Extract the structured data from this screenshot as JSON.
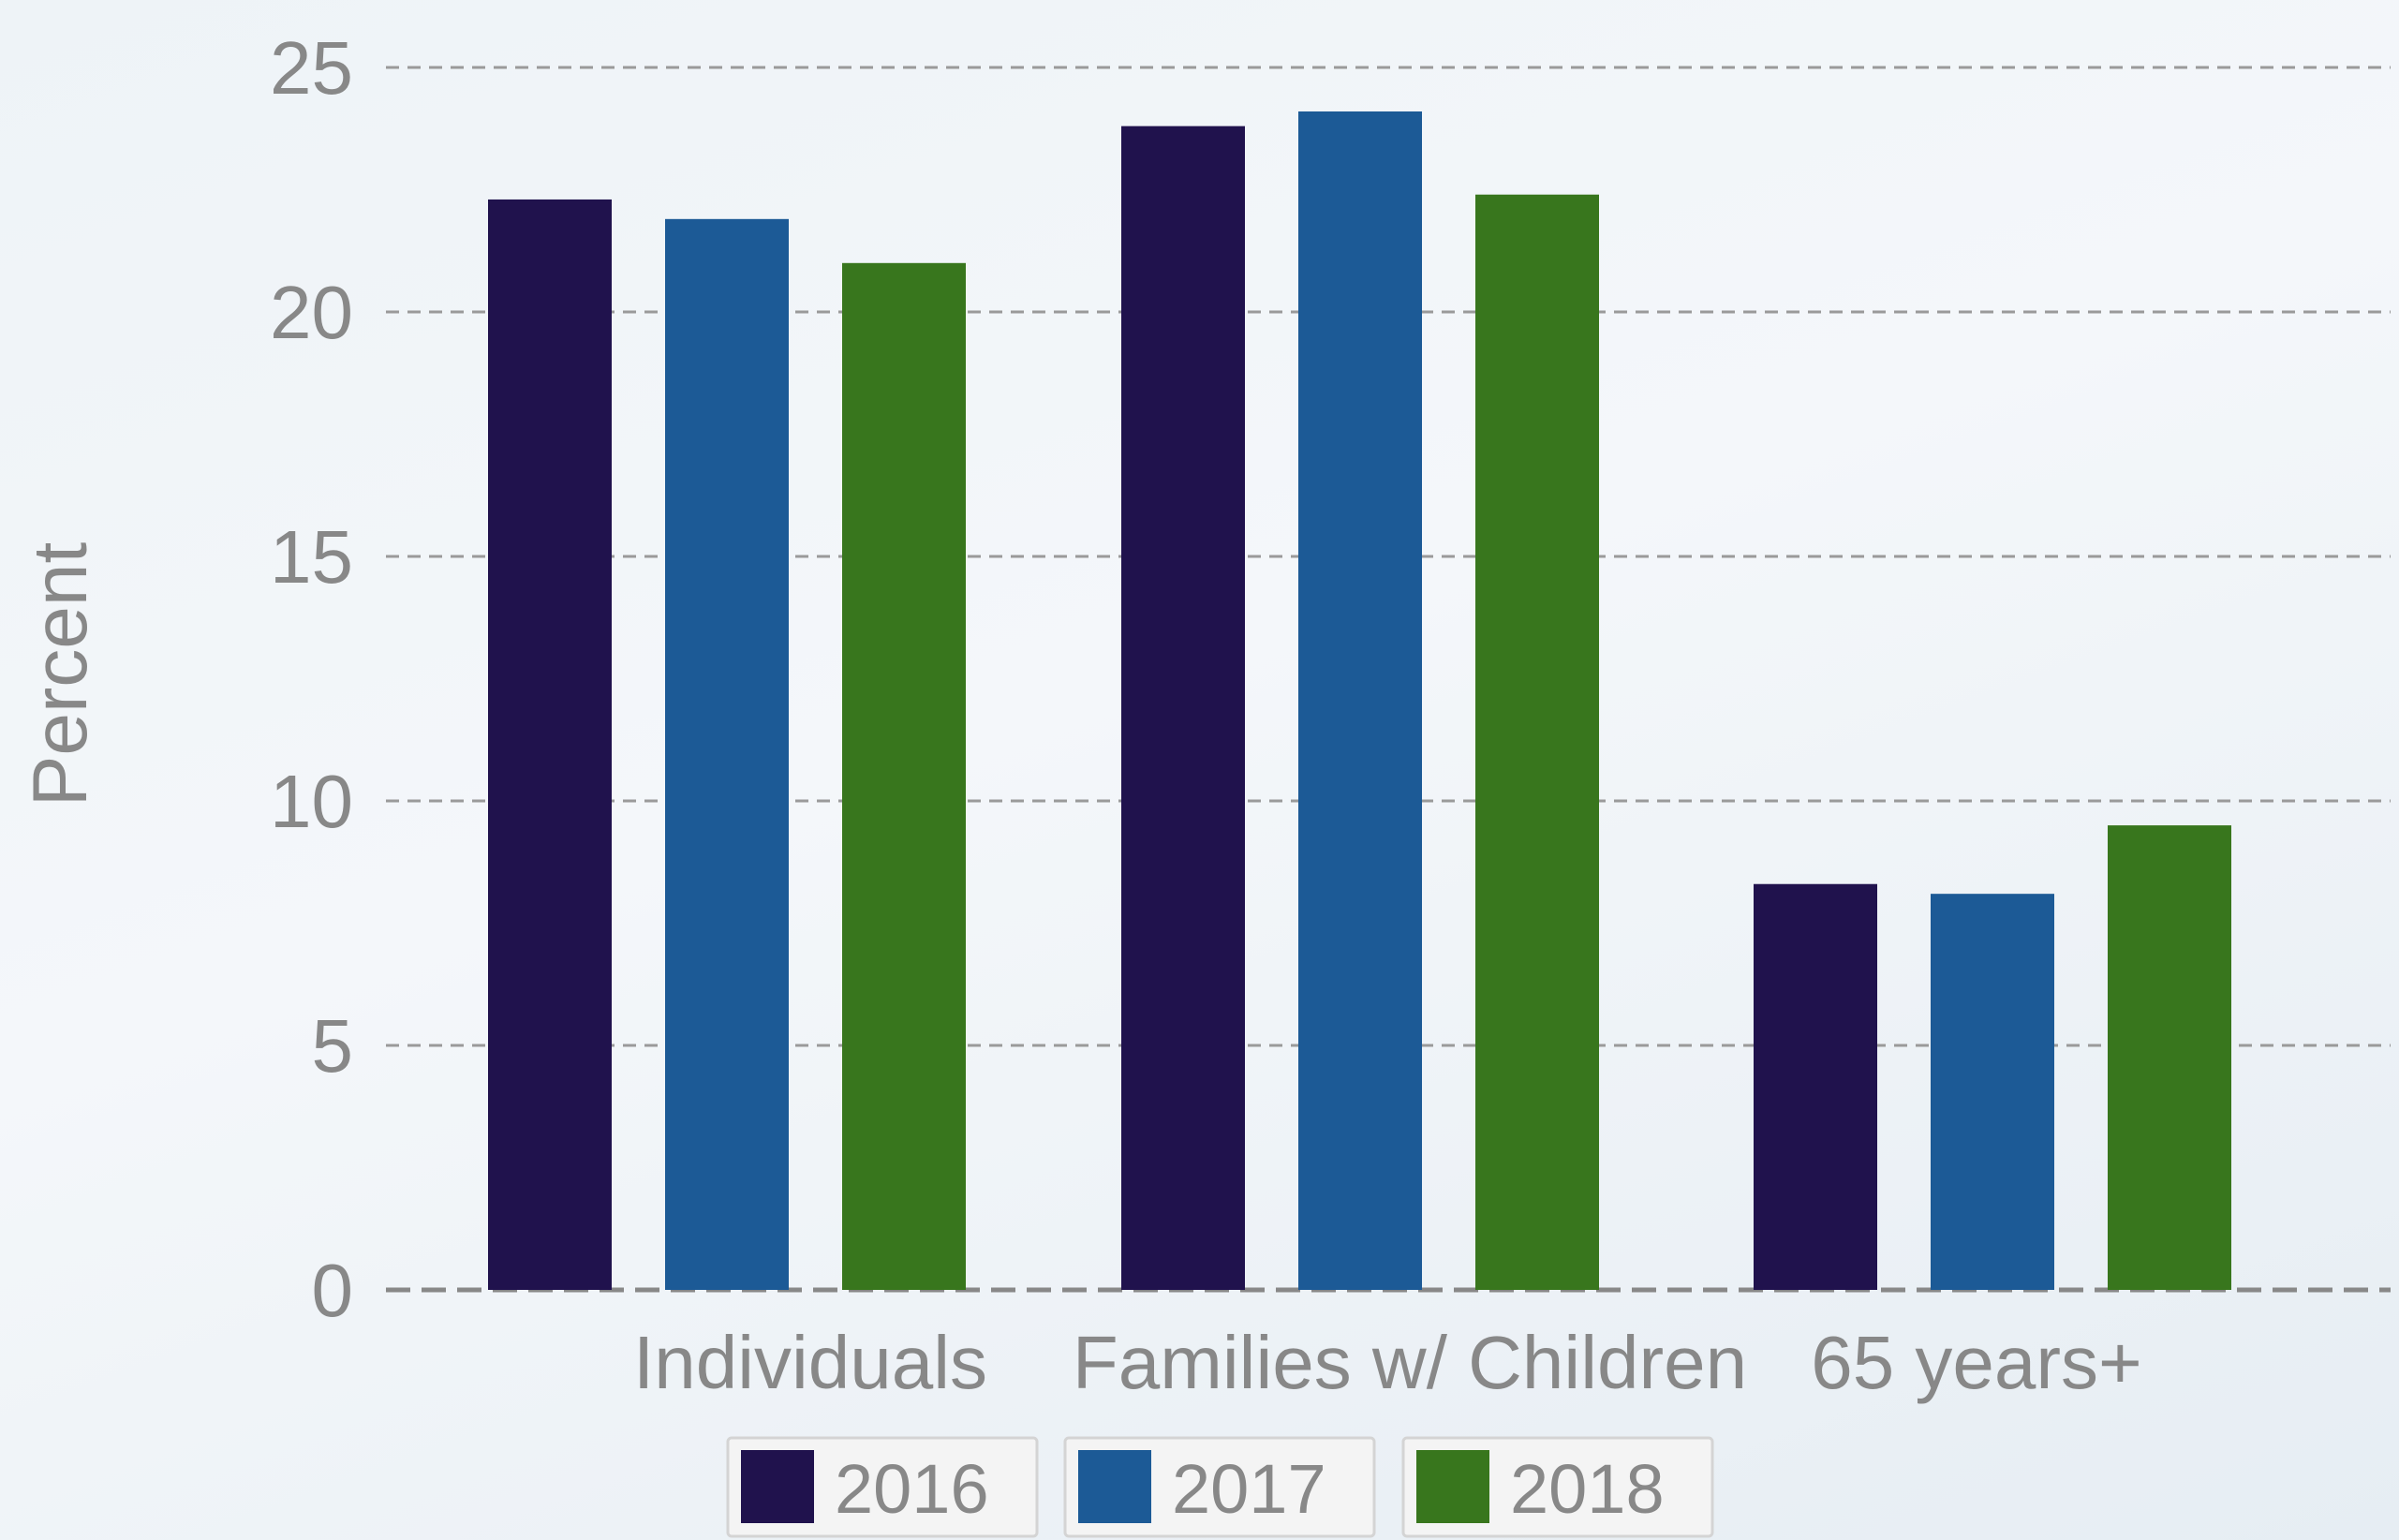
{
  "chart_data": {
    "type": "bar",
    "categories": [
      "Individuals",
      "Families w/ Children",
      "65 years+"
    ],
    "series": [
      {
        "name": "2016",
        "values": [
          22.3,
          23.8,
          8.3
        ],
        "color": "#20124d"
      },
      {
        "name": "2017",
        "values": [
          21.9,
          24.1,
          8.1
        ],
        "color": "#1c5a96"
      },
      {
        "name": "2018",
        "values": [
          21.0,
          22.4,
          9.5
        ],
        "color": "#38761d"
      }
    ],
    "title": "",
    "xlabel": "",
    "ylabel": "Percent",
    "ylim": [
      0,
      25
    ],
    "yticks": [
      0,
      5,
      10,
      15,
      20,
      25
    ],
    "grid": true,
    "legend_position": "bottom"
  }
}
